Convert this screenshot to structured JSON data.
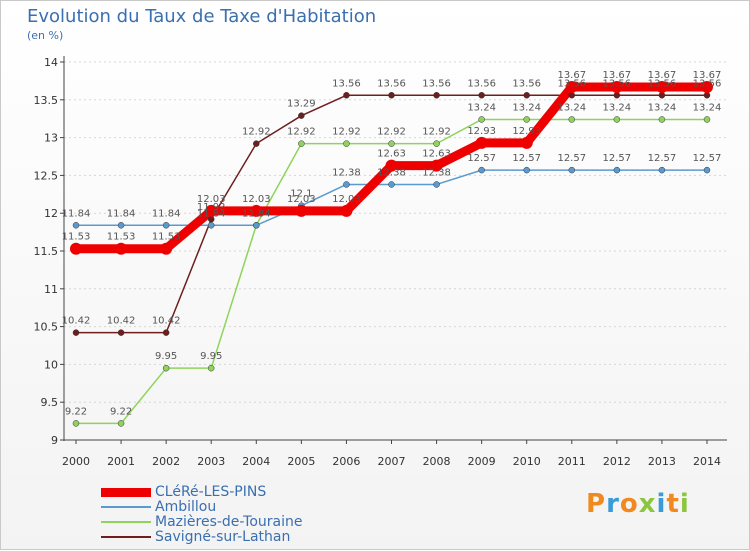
{
  "title": "Evolution du Taux de Taxe d'Habitation",
  "subtitle": "(en %)",
  "logo": {
    "text": "Proxiti",
    "letters": [
      {
        "ch": "P",
        "color": "#f08a1e"
      },
      {
        "ch": "r",
        "color": "#3a9bd8"
      },
      {
        "ch": "o",
        "color": "#f08a1e"
      },
      {
        "ch": "x",
        "color": "#8cc63f"
      },
      {
        "ch": "i",
        "color": "#3a9bd8"
      },
      {
        "ch": "t",
        "color": "#f08a1e"
      },
      {
        "ch": "i",
        "color": "#8cc63f"
      }
    ]
  },
  "chart_data": {
    "type": "line",
    "title": "Evolution du Taux de Taxe d'Habitation",
    "ylabel": "(en %)",
    "xlabel": "",
    "x": [
      "2000",
      "2001",
      "2002",
      "2003",
      "2004",
      "2005",
      "2006",
      "2007",
      "2008",
      "2009",
      "2010",
      "2011",
      "2012",
      "2013",
      "2014"
    ],
    "ylim": [
      9,
      14
    ],
    "yticks": [
      "9",
      "9.5",
      "10",
      "10.5",
      "11",
      "11.5",
      "12",
      "12.5",
      "13",
      "13.5",
      "14"
    ],
    "grid": true,
    "legend_position": "bottom-left",
    "series": [
      {
        "name": "Savigné-sur-Lathan",
        "color": "#6e1e1e",
        "values": [
          10.42,
          10.42,
          10.42,
          11.92,
          12.92,
          13.29,
          13.56,
          13.56,
          13.56,
          13.56,
          13.56,
          13.56,
          13.56,
          13.56,
          13.56
        ],
        "labels": [
          "10.42",
          "10.42",
          "10.42",
          "11.92",
          "12.92",
          "13.29",
          "13.56",
          "13.56",
          "13.56",
          "13.56",
          "13.56",
          "13.56",
          "13.56",
          "13.56",
          "13.56"
        ]
      },
      {
        "name": "Mazières-de-Touraine",
        "color": "#8fd45a",
        "values": [
          9.22,
          9.22,
          9.95,
          9.95,
          11.84,
          12.92,
          12.92,
          12.92,
          12.92,
          13.24,
          13.24,
          13.24,
          13.24,
          13.24,
          13.24
        ],
        "labels": [
          "9.22",
          "9.22",
          "9.95",
          "9.95",
          "11.84",
          "12.92",
          "12.92",
          "12.92",
          "12.92",
          "13.24",
          "13.24",
          "13.24",
          "13.24",
          "13.24",
          "13.24"
        ]
      },
      {
        "name": "Ambillou",
        "color": "#5b9ad0",
        "values": [
          11.84,
          11.84,
          11.84,
          11.84,
          11.84,
          12.1,
          12.38,
          12.38,
          12.38,
          12.57,
          12.57,
          12.57,
          12.57,
          12.57,
          12.57
        ],
        "labels": [
          "11.84",
          "11.84",
          "11.84",
          "11.84",
          "11.84",
          "12.1",
          "12.38",
          "12.38",
          "12.38",
          "12.57",
          "12.57",
          "12.57",
          "12.57",
          "12.57",
          "12.57"
        ]
      },
      {
        "name": "CLéRé-LES-PINS",
        "color": "#ee0000",
        "values": [
          11.53,
          11.53,
          11.53,
          12.03,
          12.03,
          12.03,
          12.03,
          12.63,
          12.63,
          12.93,
          12.93,
          13.67,
          13.67,
          13.67,
          13.67
        ],
        "labels": [
          "11.53",
          "11.53",
          "11.53",
          "12.03",
          "12.03",
          "12.03",
          "12.03",
          "12.63",
          "12.63",
          "12.93",
          "12.93",
          "13.67",
          "13.67",
          "13.67",
          "13.67"
        ]
      }
    ],
    "legend": [
      "CLéRé-LES-PINS",
      "Ambillou",
      "Mazières-de-Touraine",
      "Savigné-sur-Lathan"
    ]
  }
}
